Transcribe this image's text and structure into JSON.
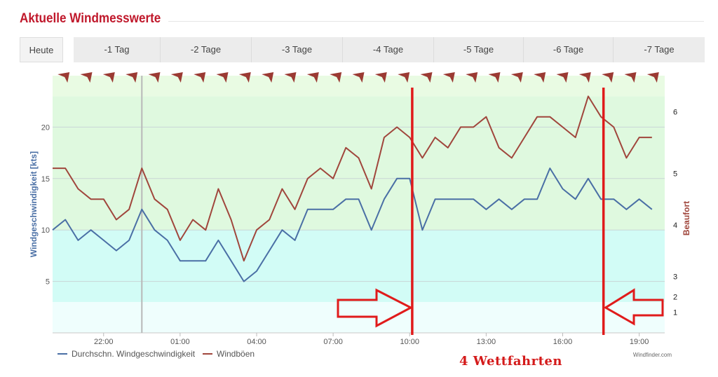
{
  "page": {
    "title": "Aktuelle Windmesswerte"
  },
  "tabs": [
    {
      "label": "Heute",
      "name": "tab-heute"
    },
    {
      "label": "-1 Tag",
      "name": "tab-minus-1-tag"
    },
    {
      "label": "-2 Tage",
      "name": "tab-minus-2-tage"
    },
    {
      "label": "-3 Tage",
      "name": "tab-minus-3-tage"
    },
    {
      "label": "-4 Tage",
      "name": "tab-minus-4-tage"
    },
    {
      "label": "-5 Tage",
      "name": "tab-minus-5-tage"
    },
    {
      "label": "-6 Tage",
      "name": "tab-minus-6-tage"
    },
    {
      "label": "-7 Tage",
      "name": "tab-minus-7-tage"
    }
  ],
  "annotation": {
    "text": "4 Wettfahrten",
    "color": "#d41a1a"
  },
  "credit": "Windfinder.com",
  "colors": {
    "speed": "#4a6fa5",
    "gust": "#a0463c",
    "direction_arrow": "#9b3a33",
    "band_green": "#dff9df",
    "band_green_light": "#e9fbe3",
    "band_cyan": "#d2fcf6",
    "band_pale": "#effefd",
    "marker_red": "#e01b1b"
  },
  "chart_data": {
    "type": "line",
    "title": "",
    "ylabel": "Windgeschwindigkeit [kts]",
    "ylabel_right": "Beaufort",
    "ylim": [
      0,
      25
    ],
    "yticks": [
      5,
      10,
      15,
      20
    ],
    "beaufort_ticks": [
      {
        "label": "1",
        "kts": 2
      },
      {
        "label": "2",
        "kts": 3.5
      },
      {
        "label": "3",
        "kts": 5.5
      },
      {
        "label": "4",
        "kts": 10.5
      },
      {
        "label": "5",
        "kts": 15.5
      },
      {
        "label": "6",
        "kts": 21.5
      }
    ],
    "x_start": "20:00",
    "x_end": "20:00",
    "xtick_labels": [
      "22:00",
      "01:00",
      "04:00",
      "07:00",
      "10:00",
      "13:00",
      "16:00",
      "19:00"
    ],
    "xtick_hours": [
      2,
      5,
      8,
      11,
      14,
      17,
      20,
      23
    ],
    "day_boundary_hour": 3.5,
    "x_hours": [
      0,
      0.5,
      1,
      1.5,
      2,
      2.5,
      3,
      3.5,
      4,
      4.5,
      5,
      5.5,
      6,
      6.5,
      7,
      7.5,
      8,
      8.5,
      9,
      9.5,
      10,
      10.5,
      11,
      11.5,
      12,
      12.5,
      13,
      13.5,
      14,
      14.5,
      15,
      15.5,
      16,
      16.5,
      17,
      17.5,
      18,
      18.5,
      19,
      19.5,
      20,
      20.5,
      21,
      21.5,
      22,
      22.5,
      23,
      23.5
    ],
    "series": [
      {
        "name": "Durchschn. Windgeschwindigkeit",
        "values": [
          10,
          11,
          9,
          10,
          9,
          8,
          9,
          12,
          10,
          9,
          7,
          7,
          7,
          9,
          7,
          5,
          6,
          8,
          10,
          9,
          12,
          12,
          12,
          13,
          13,
          10,
          13,
          15,
          15,
          10,
          13,
          13,
          13,
          13,
          12,
          13,
          12,
          13,
          13,
          16,
          14,
          13,
          15,
          13,
          13,
          12,
          13,
          12
        ]
      },
      {
        "name": "Windböen",
        "values": [
          16,
          16,
          14,
          13,
          13,
          11,
          12,
          16,
          13,
          12,
          9,
          11,
          10,
          14,
          11,
          7,
          10,
          11,
          14,
          12,
          15,
          16,
          15,
          18,
          17,
          14,
          19,
          20,
          19,
          17,
          19,
          18,
          20,
          20,
          21,
          18,
          17,
          19,
          21,
          21,
          20,
          19,
          23,
          21,
          20,
          17,
          19,
          19
        ]
      }
    ],
    "wind_direction_deg": [
      225,
      225,
      225,
      225,
      225,
      225,
      225,
      225,
      225,
      225,
      225,
      225,
      225,
      225,
      225,
      225,
      225,
      225,
      225,
      225,
      225,
      225,
      225,
      225,
      225,
      225,
      225
    ],
    "bands_kts": [
      {
        "from": 0,
        "to": 3,
        "color": "#effefd"
      },
      {
        "from": 3,
        "to": 10,
        "color": "#d2fcf6"
      },
      {
        "from": 10,
        "to": 23,
        "color": "#dff9df"
      },
      {
        "from": 23,
        "to": 25,
        "color": "#e9fbe3"
      }
    ],
    "race_markers_hours": [
      14.1,
      21.6
    ],
    "legend_position": "bottom-left",
    "grid": true
  }
}
